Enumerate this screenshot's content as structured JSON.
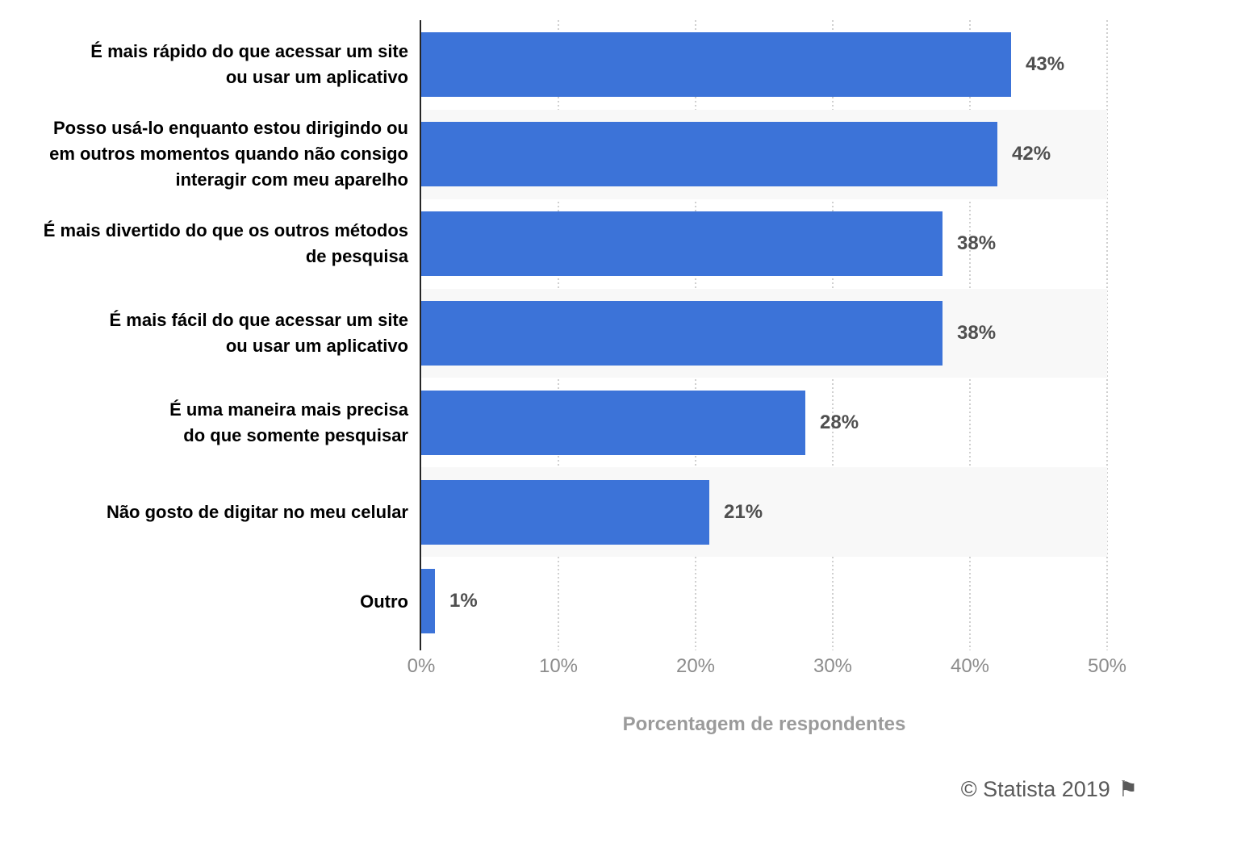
{
  "chart_data": {
    "type": "bar",
    "orientation": "horizontal",
    "title": "",
    "xlabel": "Porcentagem de respondentes",
    "ylabel": "",
    "xlim": [
      0,
      50
    ],
    "grid": {
      "vertical": true,
      "style": "dotted"
    },
    "legend": null,
    "categories": [
      "É mais rápido do que acessar um site ou usar um aplicativo",
      "Posso usá-lo enquanto estou dirigindo ou em outros momentos quando não consigo interagir com meu aparelho",
      "É mais divertido do que os outros métodos de pesquisa",
      "É mais fácil do que acessar um site ou usar um aplicativo",
      "É uma maneira mais precisa do que somente pesquisar",
      "Não gosto de digitar no meu celular",
      "Outro"
    ],
    "values": [
      43,
      42,
      38,
      38,
      28,
      21,
      1
    ],
    "rows": [
      {
        "label_lines": [
          "É mais rápido do que acessar um site",
          "ou usar um aplicativo"
        ],
        "value": 43,
        "value_label": "43%",
        "banded": false
      },
      {
        "label_lines": [
          "Posso usá-lo enquanto estou dirigindo ou",
          "em outros momentos quando não consigo",
          "interagir com meu aparelho"
        ],
        "value": 42,
        "value_label": "42%",
        "banded": true
      },
      {
        "label_lines": [
          "É mais divertido do que os outros métodos",
          "de pesquisa"
        ],
        "value": 38,
        "value_label": "38%",
        "banded": false
      },
      {
        "label_lines": [
          "É mais fácil do que acessar um site",
          "ou usar um aplicativo"
        ],
        "value": 38,
        "value_label": "38%",
        "banded": true
      },
      {
        "label_lines": [
          "É uma maneira mais precisa",
          "do que somente pesquisar"
        ],
        "value": 28,
        "value_label": "28%",
        "banded": false
      },
      {
        "label_lines": [
          "Não gosto de digitar no meu celular"
        ],
        "value": 21,
        "value_label": "21%",
        "banded": true
      },
      {
        "label_lines": [
          "Outro"
        ],
        "value": 1,
        "value_label": "1%",
        "banded": false
      }
    ],
    "x_ticks": [
      {
        "value": 0,
        "label": "0%"
      },
      {
        "value": 10,
        "label": "10%"
      },
      {
        "value": 20,
        "label": "20%"
      },
      {
        "value": 30,
        "label": "30%"
      },
      {
        "value": 40,
        "label": "40%"
      },
      {
        "value": 50,
        "label": "50%"
      }
    ],
    "colors": {
      "bar": "#3C73D8",
      "band": "#F8F8F8",
      "gridline": "#D0D0D0",
      "axis_line": "#262626",
      "category_label": "#000000",
      "value_label": "#4F4F4F",
      "tick_label": "#8C8C8C",
      "axis_title": "#9B9B9B"
    }
  },
  "footer": {
    "copyright": "© Statista 2019",
    "flag_glyph": "⚑",
    "flag_icon": "flag-icon"
  }
}
